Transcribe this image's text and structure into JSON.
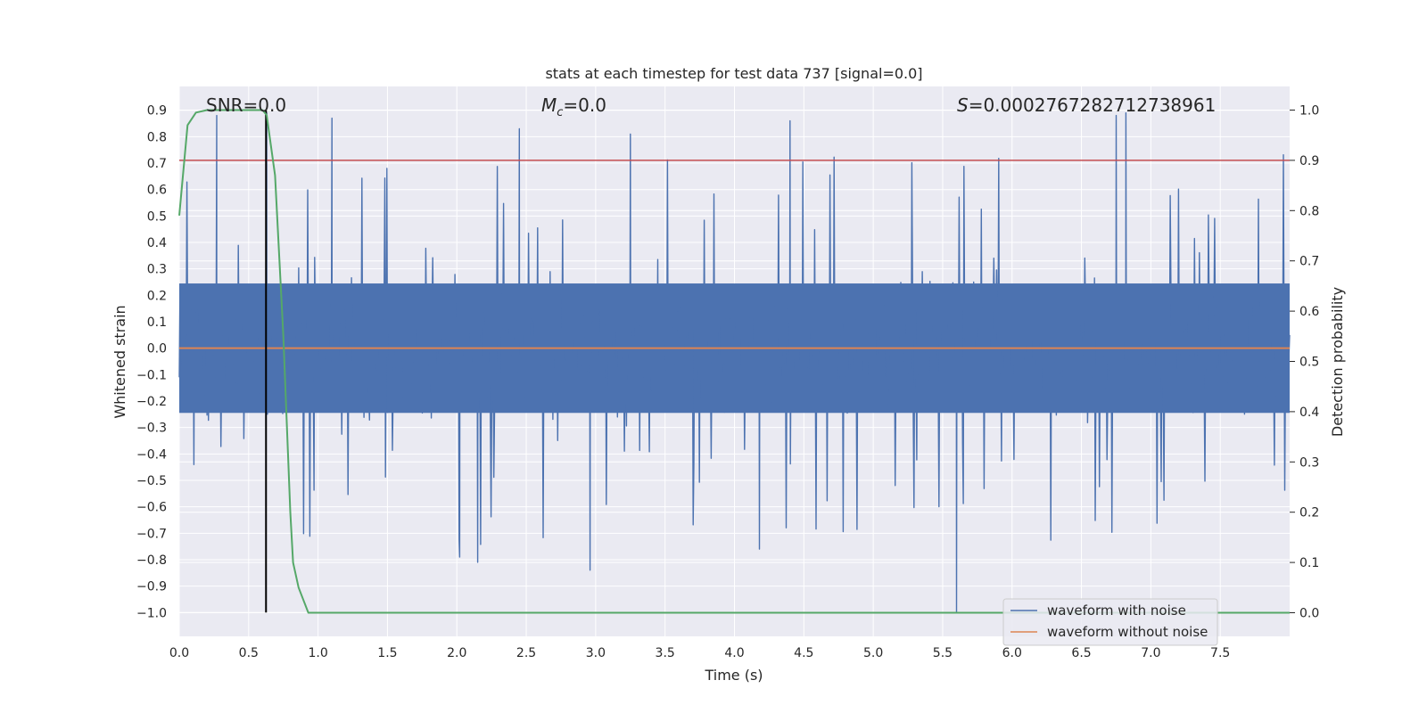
{
  "chart_data": {
    "type": "line",
    "title": "stats at each timestep for test data 737 [signal=0.0]",
    "xlabel": "Time (s)",
    "ylabel": "Whitened strain",
    "y2label": "Detection probability",
    "xlim": [
      0.0,
      8.0
    ],
    "ylim": [
      -1.09,
      0.99
    ],
    "y2lim": [
      -0.047,
      1.047
    ],
    "x_ticks": [
      "0.0",
      "0.5",
      "1.0",
      "1.5",
      "2.0",
      "2.5",
      "3.0",
      "3.5",
      "4.0",
      "4.5",
      "5.0",
      "5.5",
      "6.0",
      "6.5",
      "7.0",
      "7.5"
    ],
    "y_ticks": [
      "0.9",
      "0.8",
      "0.7",
      "0.6",
      "0.5",
      "0.4",
      "0.3",
      "0.2",
      "0.1",
      "0.0",
      "−0.1",
      "−0.2",
      "−0.3",
      "−0.4",
      "−0.5",
      "−0.6",
      "−0.7",
      "−0.8",
      "−0.9",
      "−1.0"
    ],
    "y2_ticks": [
      "1.0",
      "0.9",
      "0.8",
      "0.7",
      "0.6",
      "0.5",
      "0.4",
      "0.3",
      "0.2",
      "0.1",
      "0.0"
    ],
    "grid": true,
    "legend_position": "lower-right",
    "annotations": {
      "snr": "SNR=0.0",
      "mc_symbol": "M",
      "mc_sub": "c",
      "mc_value": "=0.0",
      "s_symbol": "S",
      "s_value": "=0.0002767282712738961"
    },
    "series": [
      {
        "name": "waveform with noise",
        "color": "#4c72b0",
        "axis": "left",
        "description": "noisy whitened strain spanning roughly -0.85 to 0.88 around 0, one spike to -1.0 near t=5.6",
        "envelope": {
          "typical_amplitude": 0.34,
          "extreme_amplitude": 0.88
        },
        "spikes": [
          [
            0.27,
            0.88
          ],
          [
            0.63,
            0.89
          ],
          [
            1.1,
            0.87
          ],
          [
            2.45,
            0.83
          ],
          [
            3.25,
            0.81
          ],
          [
            4.4,
            0.86
          ],
          [
            6.75,
            0.88
          ],
          [
            6.82,
            0.89
          ],
          [
            2.96,
            -0.84
          ],
          [
            2.02,
            -0.79
          ],
          [
            2.15,
            -0.81
          ],
          [
            4.18,
            -0.76
          ],
          [
            5.6,
            -1.0
          ]
        ]
      },
      {
        "name": "waveform without noise",
        "color": "#dd8452",
        "axis": "left",
        "value": 0.0
      },
      {
        "name": "detection probability",
        "color": "#55a868",
        "axis": "right",
        "x": [
          0.0,
          0.06,
          0.12,
          0.2,
          0.3,
          0.45,
          0.6,
          0.63,
          0.69,
          0.75,
          0.8,
          0.82,
          0.86,
          0.93,
          1.0,
          8.0
        ],
        "y": [
          0.79,
          0.97,
          0.995,
          1.0,
          1.0,
          1.0,
          1.0,
          0.99,
          0.87,
          0.55,
          0.2,
          0.1,
          0.05,
          0.0,
          0.0,
          0.0
        ]
      }
    ],
    "threshold": {
      "value": 0.9,
      "axis": "right",
      "color": "#c44e52"
    },
    "marker_line": {
      "x": 0.625,
      "color": "#000000",
      "y_from": -1.0,
      "y_to": 0.9
    }
  }
}
